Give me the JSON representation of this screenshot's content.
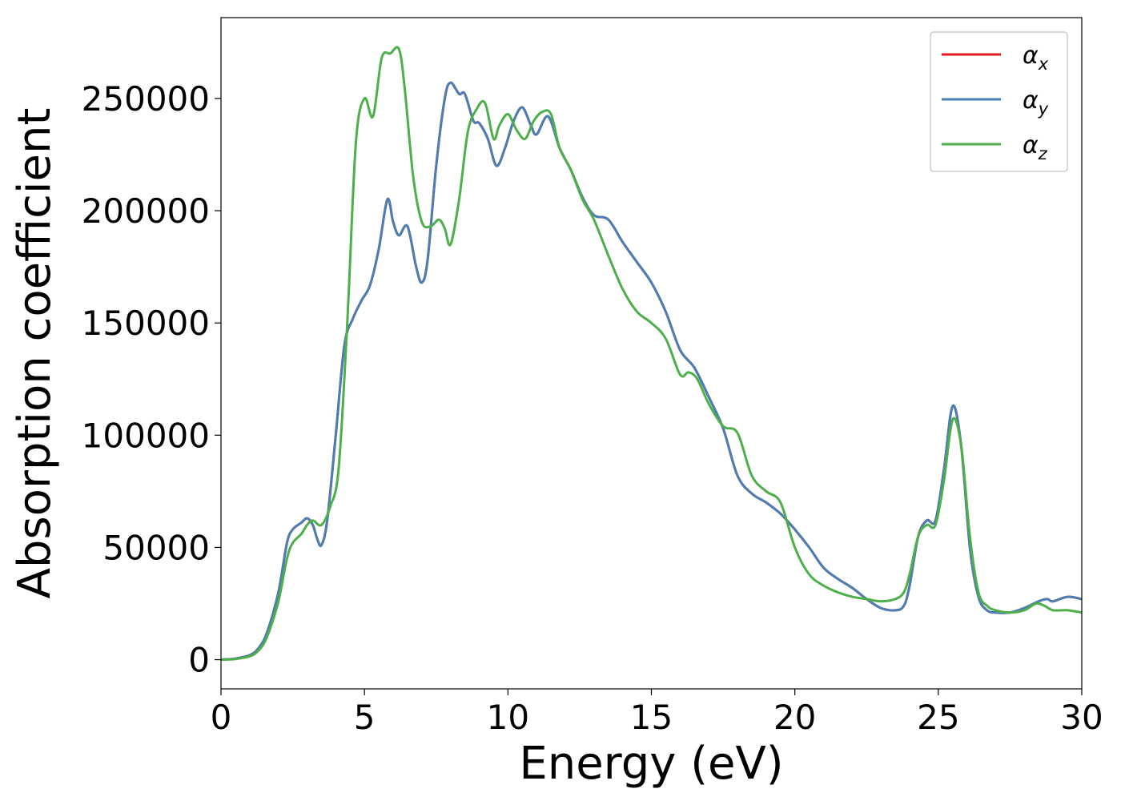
{
  "chart_data": {
    "type": "line",
    "xlabel": "Energy (eV)",
    "ylabel": "Absorption coefficient",
    "xlim": [
      0,
      30
    ],
    "ylim": [
      -13000,
      286000
    ],
    "xticks": [
      0,
      5,
      10,
      15,
      20,
      25,
      30
    ],
    "xtick_labels": [
      "0",
      "5",
      "10",
      "15",
      "20",
      "25",
      "30"
    ],
    "yticks": [
      0,
      50000,
      100000,
      150000,
      200000,
      250000
    ],
    "ytick_labels": [
      "0",
      "50000",
      "100000",
      "150000",
      "200000",
      "250000"
    ],
    "grid": false,
    "legend_position": "top-right",
    "series": [
      {
        "name": "α_x",
        "symbol": "α",
        "subscript": "x",
        "color": "#e41a1c",
        "x": [
          0,
          0.5,
          1,
          1.3,
          1.6,
          2,
          2.3,
          2.5,
          2.8,
          3.0,
          3.2,
          3.35,
          3.5,
          3.7,
          4.0,
          4.3,
          4.6,
          4.9,
          5.2,
          5.5,
          5.8,
          6.0,
          6.2,
          6.5,
          6.8,
          7.0,
          7.2,
          7.5,
          7.8,
          8.0,
          8.3,
          8.5,
          8.8,
          9.0,
          9.3,
          9.6,
          9.9,
          10.2,
          10.5,
          10.8,
          11.0,
          11.4,
          11.8,
          12.2,
          12.6,
          13.0,
          13.5,
          14.0,
          14.5,
          15.0,
          15.5,
          16.0,
          16.5,
          17.0,
          17.5,
          18.0,
          18.5,
          19.0,
          19.5,
          20.0,
          20.5,
          21.0,
          21.5,
          22.0,
          22.5,
          23.0,
          23.5,
          23.8,
          24.0,
          24.3,
          24.6,
          24.9,
          25.2,
          25.5,
          25.8,
          26.1,
          26.4,
          26.7,
          27.0,
          27.5,
          28.0,
          28.5,
          28.8,
          29.0,
          29.5,
          30.0
        ],
        "y": [
          0,
          500,
          2000,
          5000,
          12000,
          30000,
          52000,
          58000,
          61000,
          63000,
          60000,
          54000,
          51000,
          62000,
          100000,
          140000,
          152000,
          160000,
          167000,
          183000,
          205000,
          195000,
          189000,
          193000,
          175000,
          168000,
          178000,
          220000,
          250000,
          257000,
          252000,
          252000,
          240000,
          239000,
          232000,
          220000,
          228000,
          240000,
          246000,
          238000,
          234000,
          242000,
          228000,
          218000,
          206000,
          198000,
          196000,
          186000,
          177000,
          168000,
          155000,
          138000,
          130000,
          117000,
          103000,
          82000,
          74000,
          70000,
          65000,
          58000,
          50000,
          41000,
          36000,
          32000,
          27000,
          23000,
          22000,
          24000,
          33000,
          55000,
          62000,
          62000,
          85000,
          113000,
          95000,
          50000,
          28000,
          22000,
          21000,
          21000,
          23000,
          26000,
          27000,
          26000,
          28000,
          27000
        ]
      },
      {
        "name": "α_y",
        "symbol": "α",
        "subscript": "y",
        "color": "#4a7fb5",
        "x": [
          0,
          0.5,
          1,
          1.3,
          1.6,
          2,
          2.3,
          2.5,
          2.8,
          3.0,
          3.2,
          3.35,
          3.5,
          3.7,
          4.0,
          4.3,
          4.6,
          4.9,
          5.2,
          5.5,
          5.8,
          6.0,
          6.2,
          6.5,
          6.8,
          7.0,
          7.2,
          7.5,
          7.8,
          8.0,
          8.3,
          8.5,
          8.8,
          9.0,
          9.3,
          9.6,
          9.9,
          10.2,
          10.5,
          10.8,
          11.0,
          11.4,
          11.8,
          12.2,
          12.6,
          13.0,
          13.5,
          14.0,
          14.5,
          15.0,
          15.5,
          16.0,
          16.5,
          17.0,
          17.5,
          18.0,
          18.5,
          19.0,
          19.5,
          20.0,
          20.5,
          21.0,
          21.5,
          22.0,
          22.5,
          23.0,
          23.5,
          23.8,
          24.0,
          24.3,
          24.6,
          24.9,
          25.2,
          25.5,
          25.8,
          26.1,
          26.4,
          26.7,
          27.0,
          27.5,
          28.0,
          28.5,
          28.8,
          29.0,
          29.5,
          30.0
        ],
        "y": [
          0,
          500,
          2000,
          5000,
          12000,
          30000,
          52000,
          58000,
          61000,
          63000,
          60000,
          54000,
          51000,
          62000,
          100000,
          140000,
          152000,
          160000,
          167000,
          183000,
          205000,
          195000,
          189000,
          193000,
          175000,
          168000,
          178000,
          220000,
          250000,
          257000,
          252000,
          252000,
          240000,
          239000,
          232000,
          220000,
          228000,
          240000,
          246000,
          238000,
          234000,
          242000,
          228000,
          218000,
          206000,
          198000,
          196000,
          186000,
          177000,
          168000,
          155000,
          138000,
          130000,
          117000,
          103000,
          82000,
          74000,
          70000,
          65000,
          58000,
          50000,
          41000,
          36000,
          32000,
          27000,
          23000,
          22000,
          24000,
          33000,
          55000,
          62000,
          62000,
          85000,
          113000,
          95000,
          50000,
          28000,
          22000,
          21000,
          21000,
          23000,
          26000,
          27000,
          26000,
          28000,
          27000
        ]
      },
      {
        "name": "α_z",
        "symbol": "α",
        "subscript": "z",
        "color": "#4daf4a",
        "x": [
          0,
          0.5,
          1,
          1.3,
          1.6,
          2,
          2.3,
          2.5,
          2.8,
          3.0,
          3.2,
          3.5,
          3.8,
          4.1,
          4.4,
          4.7,
          5.0,
          5.3,
          5.6,
          5.9,
          6.2,
          6.4,
          6.7,
          7.0,
          7.3,
          7.6,
          7.8,
          8.0,
          8.3,
          8.6,
          8.9,
          9.2,
          9.5,
          9.7,
          10.0,
          10.3,
          10.6,
          10.9,
          11.2,
          11.5,
          11.8,
          12.2,
          12.6,
          13.0,
          13.5,
          14.0,
          14.5,
          15.0,
          15.5,
          16.0,
          16.3,
          16.6,
          17.0,
          17.5,
          18.0,
          18.5,
          19.0,
          19.5,
          20.0,
          20.5,
          21.0,
          21.5,
          22.0,
          22.5,
          23.0,
          23.5,
          23.8,
          24.0,
          24.3,
          24.6,
          24.9,
          25.2,
          25.5,
          25.8,
          26.1,
          26.4,
          26.7,
          27.0,
          27.5,
          28.0,
          28.4,
          28.7,
          29.0,
          29.5,
          30.0
        ],
        "y": [
          0,
          300,
          1500,
          4000,
          10000,
          26000,
          45000,
          52000,
          56000,
          60000,
          62000,
          60000,
          68000,
          85000,
          150000,
          230000,
          250000,
          242000,
          268000,
          270000,
          272000,
          255000,
          215000,
          195000,
          193000,
          196000,
          192000,
          185000,
          205000,
          235000,
          245000,
          248000,
          232000,
          238000,
          243000,
          236000,
          232000,
          240000,
          244000,
          243000,
          228000,
          218000,
          205000,
          196000,
          180000,
          165000,
          155000,
          150000,
          143000,
          127000,
          128000,
          125000,
          114000,
          104000,
          101000,
          82000,
          75000,
          70000,
          50000,
          38000,
          33000,
          30000,
          28000,
          27000,
          26000,
          27000,
          30000,
          38000,
          55000,
          60000,
          60000,
          80000,
          107000,
          95000,
          55000,
          30000,
          24000,
          22000,
          21000,
          22000,
          25000,
          24000,
          22000,
          22000,
          21000
        ]
      }
    ]
  }
}
